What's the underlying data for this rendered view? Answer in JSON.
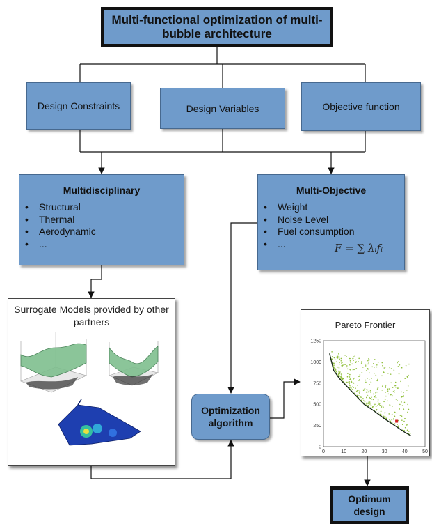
{
  "title": "Multi-functional optimization of multi-bubble architecture",
  "inputs": [
    "Design Constraints",
    "Design Variables",
    "Objective function"
  ],
  "multidisciplinary": {
    "title": "Multidisciplinary",
    "items": [
      "Structural",
      "Thermal",
      "Aerodynamic",
      "..."
    ]
  },
  "multi_objective": {
    "title": "Multi-Objective",
    "items": [
      "Weight",
      "Noise Level",
      "Fuel consumption",
      "..."
    ],
    "formula": "F = ∑ λᵢfᵢ"
  },
  "surrogate": {
    "title": "Surrogate Models provided by other partners"
  },
  "optimization": {
    "label": "Optimization algorithm"
  },
  "pareto": {
    "title": "Pareto Frontier",
    "x_ticks": [
      "0",
      "10",
      "20",
      "30",
      "40",
      "50"
    ],
    "y_ticks": [
      "0",
      "250",
      "500",
      "750",
      "1000",
      "1250"
    ],
    "xlim": [
      0,
      50
    ],
    "ylim": [
      0,
      1250
    ],
    "frontier": [
      [
        3,
        1100
      ],
      [
        5,
        900
      ],
      [
        8,
        800
      ],
      [
        12,
        700
      ],
      [
        16,
        600
      ],
      [
        20,
        500
      ],
      [
        25,
        420
      ],
      [
        30,
        330
      ],
      [
        35,
        250
      ],
      [
        40,
        170
      ],
      [
        43,
        130
      ]
    ]
  },
  "result": {
    "label": "Optimum design"
  },
  "colors": {
    "box_fill": "#6f9bcb",
    "scatter": "#8fbf3a",
    "frontier": "#1b2a1b",
    "optimum_marker": "#d02020"
  }
}
